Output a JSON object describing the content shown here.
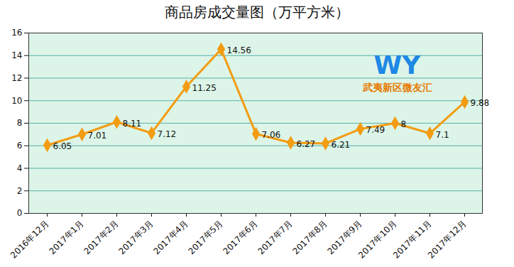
{
  "chart_data": {
    "type": "line",
    "title": "商品房成交量图（万平方米）",
    "categories": [
      "2016年12月",
      "2017年1月",
      "2017年2月",
      "2017年3月",
      "2017年4月",
      "2017年5月",
      "2017年6月",
      "2017年7月",
      "2017年8月",
      "2017年9月",
      "2017年10月",
      "2017年11月",
      "2017年12月"
    ],
    "values": [
      6.05,
      7.01,
      8.11,
      7.12,
      11.25,
      14.56,
      7.06,
      6.27,
      6.21,
      7.49,
      8,
      7.1,
      9.88
    ],
    "color": "#f39c12",
    "marker": "diamond",
    "line_style": "solid",
    "ylim": [
      0,
      16
    ],
    "yticks": [
      0,
      2,
      4,
      6,
      8,
      10,
      12,
      14,
      16
    ],
    "grid": true,
    "data_labels": true,
    "annotations": [
      "WY",
      "武夷新区微友汇"
    ]
  }
}
